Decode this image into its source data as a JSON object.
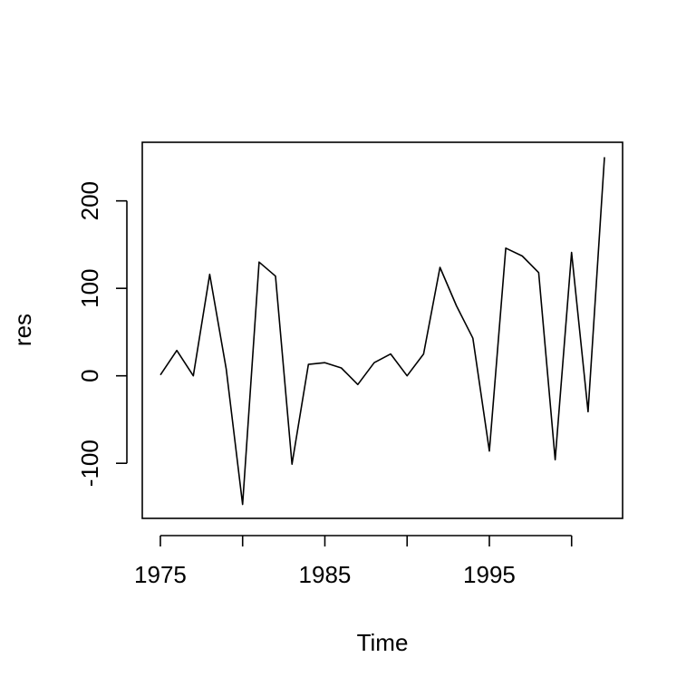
{
  "chart_data": {
    "type": "line",
    "title": "",
    "xlabel": "Time",
    "ylabel": "res",
    "x": [
      1975,
      1976,
      1977,
      1978,
      1979,
      1980,
      1981,
      1982,
      1983,
      1984,
      1985,
      1986,
      1987,
      1988,
      1989,
      1990,
      1991,
      1992,
      1993,
      1994,
      1995,
      1996,
      1997,
      1998,
      1999,
      2000,
      2001,
      2002
    ],
    "series": [
      {
        "name": "",
        "values": [
          1,
          29,
          0,
          116,
          8,
          -147,
          130,
          114,
          -101,
          13,
          15,
          9,
          -10,
          15,
          25,
          0,
          25,
          124,
          80,
          43,
          -86,
          146,
          137,
          118,
          -96,
          141,
          -41,
          250
        ]
      }
    ],
    "xlim": [
      1973.9,
      2003.1
    ],
    "ylim": [
      -163,
      267
    ],
    "xticks": [
      1975,
      1980,
      1985,
      1990,
      1995,
      2000
    ],
    "xtick_labels": [
      "1975",
      "",
      "1985",
      "",
      "1995",
      ""
    ],
    "yticks": [
      -100,
      0,
      100,
      200
    ],
    "ytick_labels": [
      "-100",
      "0",
      "100",
      "200"
    ],
    "grid": false,
    "legend": "none"
  }
}
